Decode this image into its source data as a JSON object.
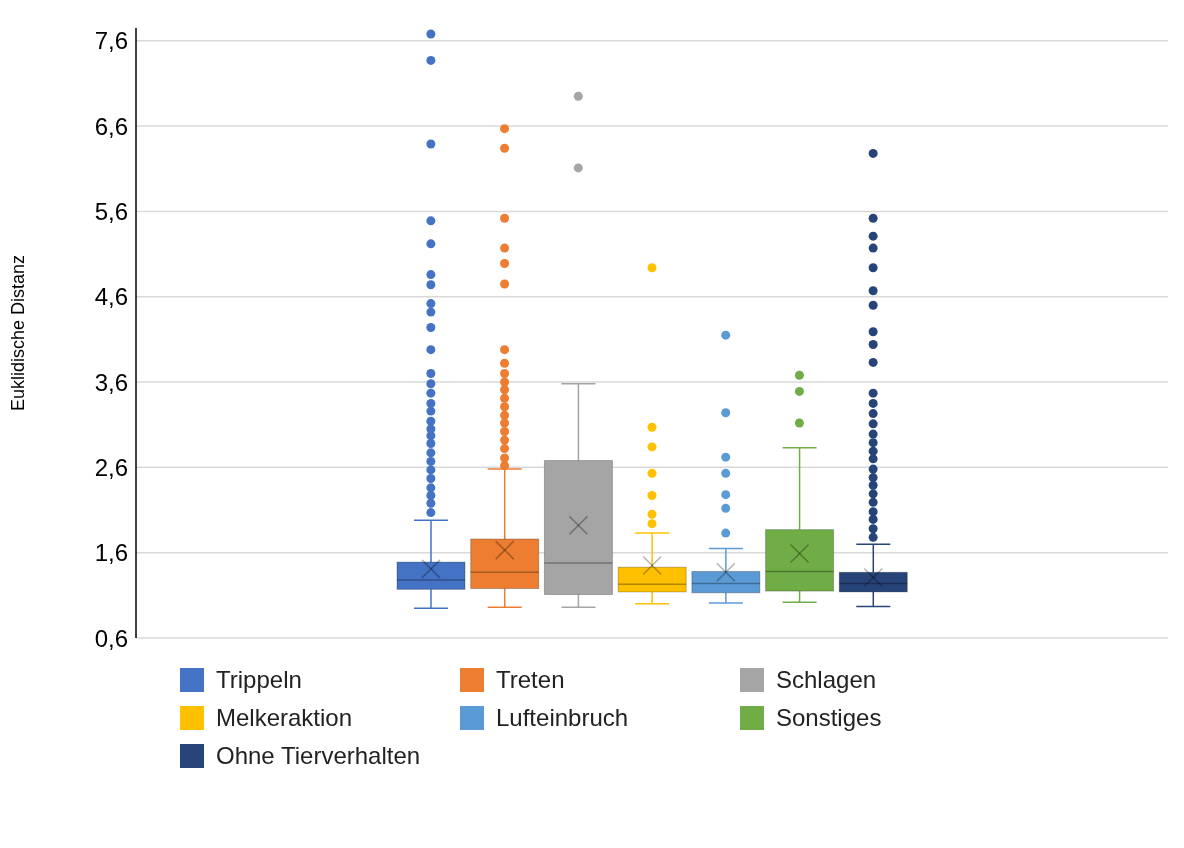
{
  "chart_data": {
    "type": "box",
    "ylabel": "Euklidische Distanz",
    "categories": [
      null
    ],
    "ylim": [
      0.6,
      7.75
    ],
    "yticks": [
      {
        "value": 0.6,
        "label": "0,6"
      },
      {
        "value": 1.6,
        "label": "1,6"
      },
      {
        "value": 2.6,
        "label": "2,6"
      },
      {
        "value": 3.6,
        "label": "3,6"
      },
      {
        "value": 4.6,
        "label": "4,6"
      },
      {
        "value": 5.6,
        "label": "5,6"
      },
      {
        "value": 6.6,
        "label": "6,6"
      },
      {
        "value": 7.6,
        "label": "7,6"
      }
    ],
    "grid": "y",
    "legend": "bottom",
    "marker": "circle",
    "series": [
      {
        "name": "Trippeln",
        "color": "#4472c4",
        "boxes": [
          {
            "low": 0.95,
            "q1": 1.17,
            "median": 1.28,
            "q3": 1.49,
            "high": 1.98,
            "mean": 1.41,
            "outliers": [
              7.68,
              7.37,
              6.39,
              5.49,
              5.22,
              4.86,
              4.74,
              4.52,
              4.42,
              4.24,
              3.98,
              3.7,
              3.58,
              3.47,
              3.35,
              3.26,
              3.14,
              3.05,
              2.97,
              2.88,
              2.77,
              2.67,
              2.57,
              2.47,
              2.36,
              2.27,
              2.18,
              2.07
            ]
          }
        ]
      },
      {
        "name": "Treten",
        "color": "#ed7d31",
        "boxes": [
          {
            "low": 0.96,
            "q1": 1.18,
            "median": 1.37,
            "q3": 1.76,
            "high": 2.58,
            "mean": 1.63,
            "outliers": [
              6.57,
              6.34,
              5.52,
              5.17,
              4.99,
              4.75,
              3.98,
              3.82,
              3.7,
              3.6,
              3.51,
              3.41,
              3.31,
              3.21,
              3.12,
              3.02,
              2.92,
              2.82,
              2.71,
              2.62
            ]
          }
        ]
      },
      {
        "name": "Schlagen",
        "color": "#a5a5a5",
        "boxes": [
          {
            "low": 0.96,
            "q1": 1.11,
            "median": 1.48,
            "q3": 2.68,
            "high": 3.58,
            "mean": 1.92,
            "outliers": [
              6.95,
              6.11
            ]
          }
        ]
      },
      {
        "name": "Melkeraktion",
        "color": "#ffc000",
        "boxes": [
          {
            "low": 1.0,
            "q1": 1.14,
            "median": 1.23,
            "q3": 1.43,
            "high": 1.83,
            "mean": 1.45,
            "outliers": [
              4.94,
              3.07,
              2.84,
              2.53,
              2.27,
              2.05,
              1.94
            ]
          }
        ]
      },
      {
        "name": "Lufteinbruch",
        "color": "#5b9bd5",
        "boxes": [
          {
            "low": 1.01,
            "q1": 1.13,
            "median": 1.24,
            "q3": 1.38,
            "high": 1.65,
            "mean": 1.37,
            "outliers": [
              4.15,
              3.24,
              2.72,
              2.53,
              2.28,
              2.12,
              1.83
            ]
          }
        ]
      },
      {
        "name": "Sonstiges",
        "color": "#70ad47",
        "boxes": [
          {
            "low": 1.02,
            "q1": 1.15,
            "median": 1.38,
            "q3": 1.87,
            "high": 2.83,
            "mean": 1.59,
            "outliers": [
              3.68,
              3.49,
              3.12
            ]
          }
        ]
      },
      {
        "name": "Ohne Tierverhalten",
        "color": "#264478",
        "boxes": [
          {
            "low": 0.97,
            "q1": 1.14,
            "median": 1.24,
            "q3": 1.37,
            "high": 1.7,
            "mean": 1.31,
            "outliers": [
              6.28,
              5.52,
              5.31,
              5.17,
              4.94,
              4.67,
              4.5,
              4.19,
              4.04,
              3.83,
              3.47,
              3.35,
              3.23,
              3.11,
              2.99,
              2.89,
              2.79,
              2.7,
              2.58,
              2.48,
              2.39,
              2.29,
              2.19,
              2.08,
              1.99,
              1.88,
              1.78
            ]
          }
        ]
      }
    ]
  }
}
